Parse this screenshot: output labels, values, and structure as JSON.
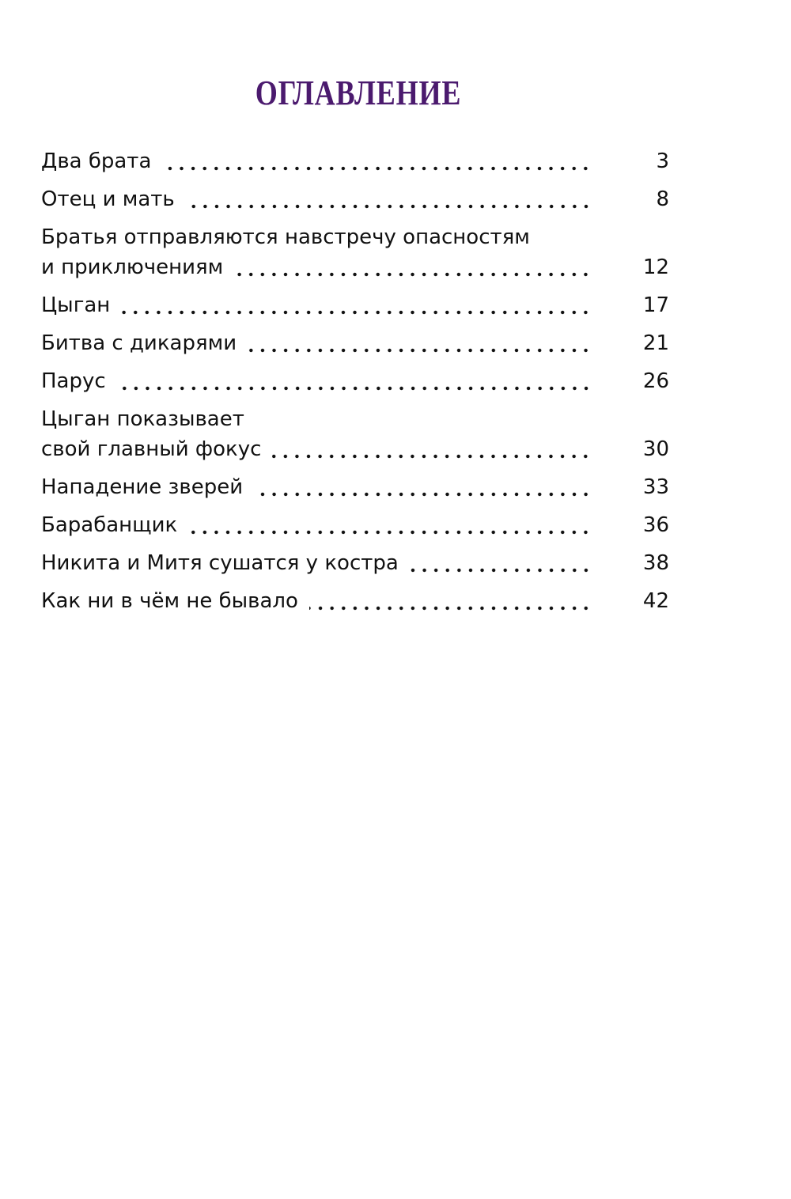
{
  "title": "ОГЛАВЛЕНИЕ",
  "entries": [
    {
      "lines": [
        "Два брата"
      ],
      "page": 3
    },
    {
      "lines": [
        "Отец и мать"
      ],
      "page": 8
    },
    {
      "lines": [
        "Братья отправляются навстречу опасностям",
        "и приключениям"
      ],
      "page": 12
    },
    {
      "lines": [
        "Цыган"
      ],
      "page": 17
    },
    {
      "lines": [
        "Битва с дикарями"
      ],
      "page": 21
    },
    {
      "lines": [
        "Парус"
      ],
      "page": 26
    },
    {
      "lines": [
        "Цыган показывает",
        "свой главный фокус"
      ],
      "page": 30
    },
    {
      "lines": [
        "Нападение зверей"
      ],
      "page": 33
    },
    {
      "lines": [
        "Барабанщик"
      ],
      "page": 36
    },
    {
      "lines": [
        "Никита и Митя сушатся у костра"
      ],
      "page": 38
    },
    {
      "lines": [
        "Как ни в чём не бывало"
      ],
      "page": 42
    }
  ]
}
